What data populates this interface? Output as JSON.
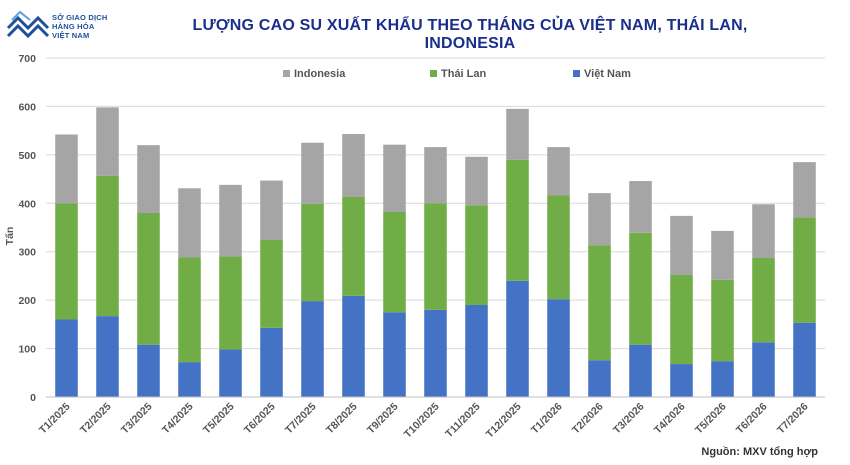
{
  "logo": {
    "line1": "SỞ GIAO DỊCH",
    "line2": "HÀNG HÓA",
    "line3": "VIỆT NAM"
  },
  "title": "LƯỢNG CAO SU XUẤT KHẨU THEO THÁNG CỦA VIỆT NAM, THÁI LAN, INDONESIA",
  "source": "Nguồn: MXV tổng hợp",
  "colors": {
    "viet_nam": "#4472c4",
    "thai_lan": "#70ad47",
    "indonesia": "#a5a5a5",
    "logo": "#1d4f9c",
    "title": "#1a2f8c"
  },
  "chart_data": {
    "type": "bar",
    "stacked": true,
    "ylabel": "Tấn",
    "ylim": [
      0,
      700
    ],
    "yticks": [
      0,
      100,
      200,
      300,
      400,
      500,
      600,
      700
    ],
    "grid": true,
    "legend_position": "top",
    "categories": [
      "T1/2025",
      "T2/2025",
      "T3/2025",
      "T4/2025",
      "T5/2025",
      "T6/2025",
      "T7/2025",
      "T8/2025",
      "T9/2025",
      "T10/2025",
      "T11/2025",
      "T12/2025",
      "T1/2026",
      "T2/2026",
      "T3/2026",
      "T4/2026",
      "T5/2026",
      "T6/2026",
      "T7/2026"
    ],
    "series": [
      {
        "name": "Việt Nam",
        "color": "#4472c4",
        "values": [
          160,
          167,
          108,
          72,
          98,
          143,
          198,
          209,
          175,
          180,
          190,
          240,
          202,
          76,
          108,
          68,
          74,
          113,
          153
        ]
      },
      {
        "name": "Thái Lan",
        "color": "#70ad47",
        "values": [
          240,
          290,
          272,
          216,
          192,
          182,
          201,
          204,
          207,
          220,
          206,
          250,
          214,
          237,
          231,
          184,
          168,
          174,
          218
        ]
      },
      {
        "name": "Indonesia",
        "color": "#a5a5a5",
        "values": [
          142,
          141,
          140,
          143,
          148,
          122,
          126,
          130,
          139,
          116,
          100,
          105,
          100,
          108,
          107,
          122,
          101,
          111,
          114
        ]
      }
    ],
    "legend_order": [
      "Indonesia",
      "Thái Lan",
      "Việt Nam"
    ]
  }
}
